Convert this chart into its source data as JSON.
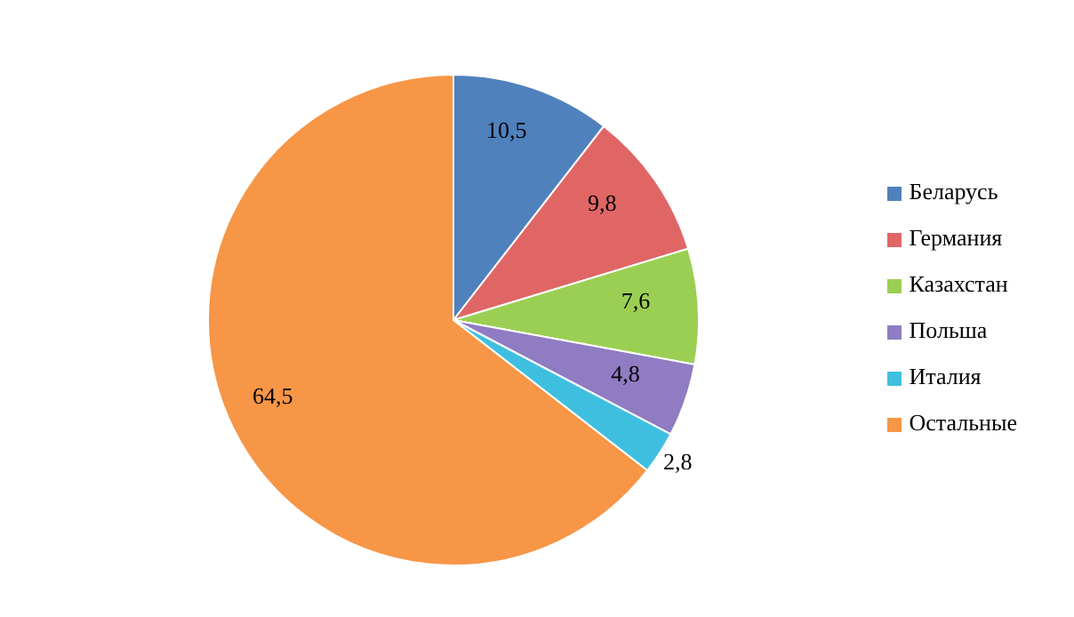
{
  "chart_data": {
    "type": "pie",
    "categories": [
      "Беларусь",
      "Германия",
      "Казахстан",
      "Польша",
      "Италия",
      "Остальные"
    ],
    "values": [
      10.5,
      9.8,
      7.6,
      4.8,
      2.8,
      64.5
    ],
    "value_labels": [
      "10,5",
      "9,8",
      "7,6",
      "4,8",
      "2,8",
      "64,5"
    ],
    "colors": [
      "#4f81bd",
      "#e06666",
      "#9bcf53",
      "#8f7cc2",
      "#3fbfe0",
      "#f79646"
    ],
    "legend": "right"
  }
}
